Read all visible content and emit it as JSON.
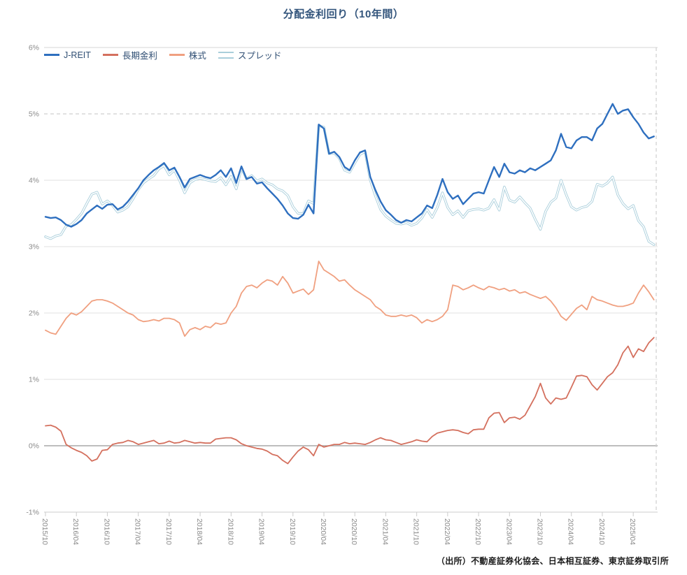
{
  "title": "分配金利回り（10年間）",
  "source_note": "（出所）不動産証券化協会、日本相互証券、東京証券取引所",
  "colors": {
    "jreit": "#2e6fbf",
    "long_term_rate": "#d4705e",
    "equity": "#f0a080",
    "spread": "#a9cedb",
    "title_text": "#33557c",
    "grid": "#e2e2e2",
    "zero_line": "#a8a8a8"
  },
  "chart_data": {
    "type": "line",
    "title": "分配金利回り（10年間）",
    "xlabel": "",
    "ylabel": "",
    "ylim": [
      -1,
      6
    ],
    "grid": true,
    "legend_position": "top-left",
    "x_start": "2015/10",
    "x_end": "2025/08",
    "x_interval": "monthly",
    "x_tick_labels": [
      "2015/10",
      "2016/04",
      "2016/10",
      "2017/04",
      "2017/10",
      "2018/04",
      "2018/10",
      "2019/04",
      "2019/10",
      "2020/04",
      "2020/10",
      "2021/04",
      "2021/10",
      "2022/04",
      "2022/10",
      "2023/04",
      "2023/10",
      "2024/04",
      "2024/10",
      "2025/04"
    ],
    "y_tick_labels": [
      "6%",
      "5%",
      "4%",
      "3%",
      "2%",
      "1%",
      "0%",
      "-1%"
    ],
    "y_tick_values": [
      6,
      5,
      4,
      3,
      2,
      1,
      0,
      -1
    ],
    "series": [
      {
        "name": "J-REIT",
        "color": "#2e6fbf",
        "style": "solid",
        "width": 2.4,
        "values": [
          3.45,
          3.43,
          3.44,
          3.4,
          3.33,
          3.3,
          3.34,
          3.4,
          3.5,
          3.56,
          3.62,
          3.57,
          3.63,
          3.64,
          3.56,
          3.6,
          3.68,
          3.78,
          3.88,
          4.0,
          4.08,
          4.15,
          4.2,
          4.26,
          4.15,
          4.19,
          4.05,
          3.89,
          4.02,
          4.05,
          4.08,
          4.05,
          4.03,
          4.08,
          4.15,
          4.05,
          4.18,
          3.96,
          4.21,
          4.02,
          4.05,
          3.95,
          3.97,
          3.88,
          3.8,
          3.72,
          3.62,
          3.5,
          3.43,
          3.42,
          3.48,
          3.63,
          3.5,
          4.84,
          4.78,
          4.4,
          4.43,
          4.35,
          4.2,
          4.15,
          4.3,
          4.42,
          4.45,
          4.05,
          3.85,
          3.68,
          3.55,
          3.48,
          3.4,
          3.36,
          3.4,
          3.38,
          3.44,
          3.5,
          3.62,
          3.58,
          3.78,
          4.02,
          3.82,
          3.72,
          3.77,
          3.64,
          3.72,
          3.8,
          3.82,
          3.8,
          4.0,
          4.2,
          4.05,
          4.25,
          4.12,
          4.1,
          4.15,
          4.12,
          4.18,
          4.15,
          4.2,
          4.25,
          4.3,
          4.45,
          4.7,
          4.5,
          4.48,
          4.6,
          4.65,
          4.65,
          4.6,
          4.78,
          4.85,
          5.0,
          5.15,
          5.0,
          5.05,
          5.07,
          4.95,
          4.85,
          4.72,
          4.63,
          4.66
        ]
      },
      {
        "name": "長期金利",
        "color": "#d4705e",
        "style": "solid",
        "width": 1.8,
        "values": [
          0.3,
          0.31,
          0.28,
          0.22,
          0.02,
          -0.03,
          -0.07,
          -0.1,
          -0.15,
          -0.23,
          -0.2,
          -0.07,
          -0.06,
          0.02,
          0.04,
          0.05,
          0.08,
          0.06,
          0.02,
          0.04,
          0.06,
          0.08,
          0.03,
          0.04,
          0.07,
          0.04,
          0.05,
          0.08,
          0.06,
          0.04,
          0.05,
          0.04,
          0.04,
          0.1,
          0.11,
          0.12,
          0.12,
          0.09,
          0.03,
          0.0,
          -0.02,
          -0.04,
          -0.05,
          -0.08,
          -0.13,
          -0.15,
          -0.22,
          -0.27,
          -0.17,
          -0.08,
          -0.02,
          -0.06,
          -0.15,
          0.02,
          -0.02,
          0.0,
          0.02,
          0.02,
          0.05,
          0.03,
          0.04,
          0.03,
          0.02,
          0.05,
          0.09,
          0.12,
          0.09,
          0.08,
          0.05,
          0.02,
          0.04,
          0.06,
          0.09,
          0.07,
          0.06,
          0.14,
          0.19,
          0.21,
          0.23,
          0.24,
          0.23,
          0.2,
          0.18,
          0.24,
          0.25,
          0.25,
          0.42,
          0.49,
          0.5,
          0.35,
          0.42,
          0.43,
          0.4,
          0.46,
          0.6,
          0.74,
          0.94,
          0.72,
          0.63,
          0.72,
          0.7,
          0.72,
          0.88,
          1.05,
          1.06,
          1.04,
          0.92,
          0.84,
          0.94,
          1.04,
          1.1,
          1.22,
          1.4,
          1.5,
          1.33,
          1.46,
          1.42,
          1.55,
          1.63
        ]
      },
      {
        "name": "株式",
        "color": "#f0a080",
        "style": "solid",
        "width": 1.8,
        "values": [
          1.74,
          1.7,
          1.68,
          1.8,
          1.92,
          2.0,
          1.97,
          2.02,
          2.1,
          2.18,
          2.2,
          2.2,
          2.18,
          2.15,
          2.1,
          2.05,
          2.0,
          1.97,
          1.9,
          1.87,
          1.88,
          1.9,
          1.88,
          1.92,
          1.92,
          1.9,
          1.85,
          1.65,
          1.75,
          1.78,
          1.75,
          1.8,
          1.78,
          1.85,
          1.83,
          1.85,
          2.0,
          2.1,
          2.3,
          2.4,
          2.42,
          2.38,
          2.45,
          2.5,
          2.48,
          2.42,
          2.55,
          2.45,
          2.3,
          2.33,
          2.36,
          2.28,
          2.35,
          2.78,
          2.65,
          2.6,
          2.55,
          2.48,
          2.5,
          2.42,
          2.35,
          2.3,
          2.25,
          2.2,
          2.1,
          2.05,
          1.97,
          1.95,
          1.95,
          1.97,
          1.95,
          1.97,
          1.93,
          1.85,
          1.9,
          1.87,
          1.9,
          1.95,
          2.05,
          2.42,
          2.4,
          2.35,
          2.38,
          2.42,
          2.38,
          2.35,
          2.4,
          2.38,
          2.35,
          2.37,
          2.33,
          2.35,
          2.3,
          2.32,
          2.28,
          2.25,
          2.22,
          2.25,
          2.18,
          2.08,
          1.95,
          1.89,
          1.98,
          2.07,
          2.12,
          2.05,
          2.25,
          2.2,
          2.18,
          2.15,
          2.12,
          2.1,
          2.1,
          2.12,
          2.15,
          2.3,
          2.42,
          2.32,
          2.2
        ]
      },
      {
        "name": "スプレッド",
        "color": "#a9cedb",
        "style": "double",
        "width": 3.4,
        "values": [
          3.15,
          3.12,
          3.16,
          3.18,
          3.31,
          3.33,
          3.41,
          3.5,
          3.65,
          3.79,
          3.82,
          3.64,
          3.69,
          3.62,
          3.52,
          3.55,
          3.6,
          3.72,
          3.86,
          3.96,
          4.02,
          4.07,
          4.17,
          4.22,
          4.08,
          4.15,
          4.0,
          3.81,
          3.96,
          4.01,
          4.03,
          4.01,
          3.99,
          3.98,
          4.04,
          3.93,
          4.06,
          3.87,
          4.18,
          4.02,
          4.07,
          3.99,
          4.02,
          3.96,
          3.93,
          3.87,
          3.84,
          3.77,
          3.6,
          3.5,
          3.5,
          3.69,
          3.65,
          4.82,
          4.8,
          4.4,
          4.41,
          4.33,
          4.15,
          4.12,
          4.26,
          4.39,
          4.43,
          4.0,
          3.76,
          3.56,
          3.46,
          3.4,
          3.35,
          3.34,
          3.36,
          3.32,
          3.35,
          3.43,
          3.56,
          3.44,
          3.59,
          3.81,
          3.59,
          3.48,
          3.54,
          3.44,
          3.54,
          3.56,
          3.57,
          3.55,
          3.58,
          3.71,
          3.55,
          3.9,
          3.7,
          3.67,
          3.75,
          3.66,
          3.58,
          3.41,
          3.26,
          3.53,
          3.67,
          3.73,
          4.0,
          3.78,
          3.6,
          3.55,
          3.59,
          3.61,
          3.68,
          3.94,
          3.91,
          3.96,
          4.05,
          3.78,
          3.65,
          3.57,
          3.62,
          3.39,
          3.3,
          3.08,
          3.03
        ]
      }
    ]
  }
}
